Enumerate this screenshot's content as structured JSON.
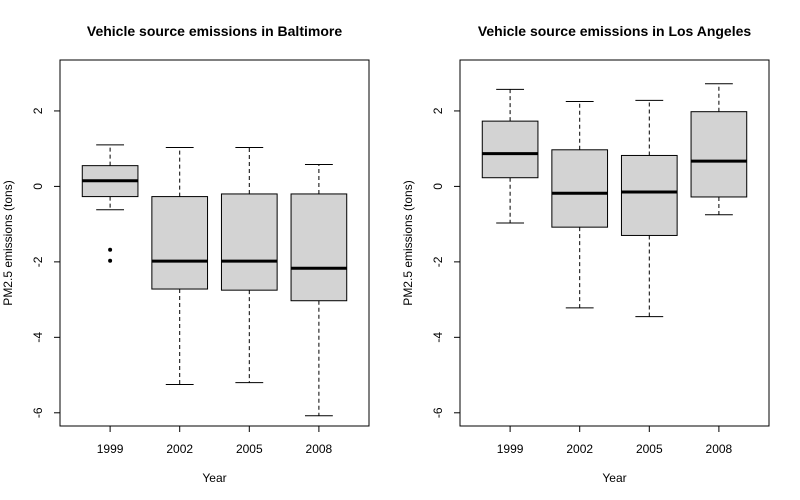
{
  "chart_data": [
    {
      "type": "boxplot",
      "title": "Vehicle source emissions in Baltimore",
      "xlabel": "Year",
      "ylabel": "PM2.5 emissions (tons)",
      "ylim": [
        -6.35,
        3.35
      ],
      "yticks": [
        -6,
        -4,
        -2,
        0,
        2
      ],
      "categories": [
        "1999",
        "2002",
        "2005",
        "2008"
      ],
      "boxes": [
        {
          "whisker_low": -0.62,
          "q1": -0.27,
          "median": 0.15,
          "q3": 0.55,
          "whisker_high": 1.1,
          "outliers": [
            -1.68,
            -1.97
          ]
        },
        {
          "whisker_low": -5.25,
          "q1": -2.72,
          "median": -1.98,
          "q3": -0.27,
          "whisker_high": 1.03,
          "outliers": []
        },
        {
          "whisker_low": -5.2,
          "q1": -2.75,
          "median": -1.98,
          "q3": -0.2,
          "whisker_high": 1.03,
          "outliers": []
        },
        {
          "whisker_low": -6.08,
          "q1": -3.03,
          "median": -2.17,
          "q3": -0.2,
          "whisker_high": 0.58,
          "outliers": []
        }
      ],
      "grid": false,
      "legend": "none",
      "box_fill": "#d3d3d3"
    },
    {
      "type": "boxplot",
      "title": "Vehicle source emissions in Los Angeles",
      "xlabel": "Year",
      "ylabel": "PM2.5 emissions (tons)",
      "ylim": [
        -6.35,
        3.35
      ],
      "yticks": [
        -6,
        -4,
        -2,
        0,
        2
      ],
      "categories": [
        "1999",
        "2002",
        "2005",
        "2008"
      ],
      "boxes": [
        {
          "whisker_low": -0.97,
          "q1": 0.23,
          "median": 0.87,
          "q3": 1.73,
          "whisker_high": 2.57,
          "outliers": []
        },
        {
          "whisker_low": -3.22,
          "q1": -1.08,
          "median": -0.18,
          "q3": 0.97,
          "whisker_high": 2.25,
          "outliers": []
        },
        {
          "whisker_low": -3.45,
          "q1": -1.3,
          "median": -0.15,
          "q3": 0.82,
          "whisker_high": 2.28,
          "outliers": []
        },
        {
          "whisker_low": -0.75,
          "q1": -0.28,
          "median": 0.67,
          "q3": 1.98,
          "whisker_high": 2.72,
          "outliers": []
        }
      ],
      "grid": false,
      "legend": "none",
      "box_fill": "#d3d3d3"
    }
  ]
}
